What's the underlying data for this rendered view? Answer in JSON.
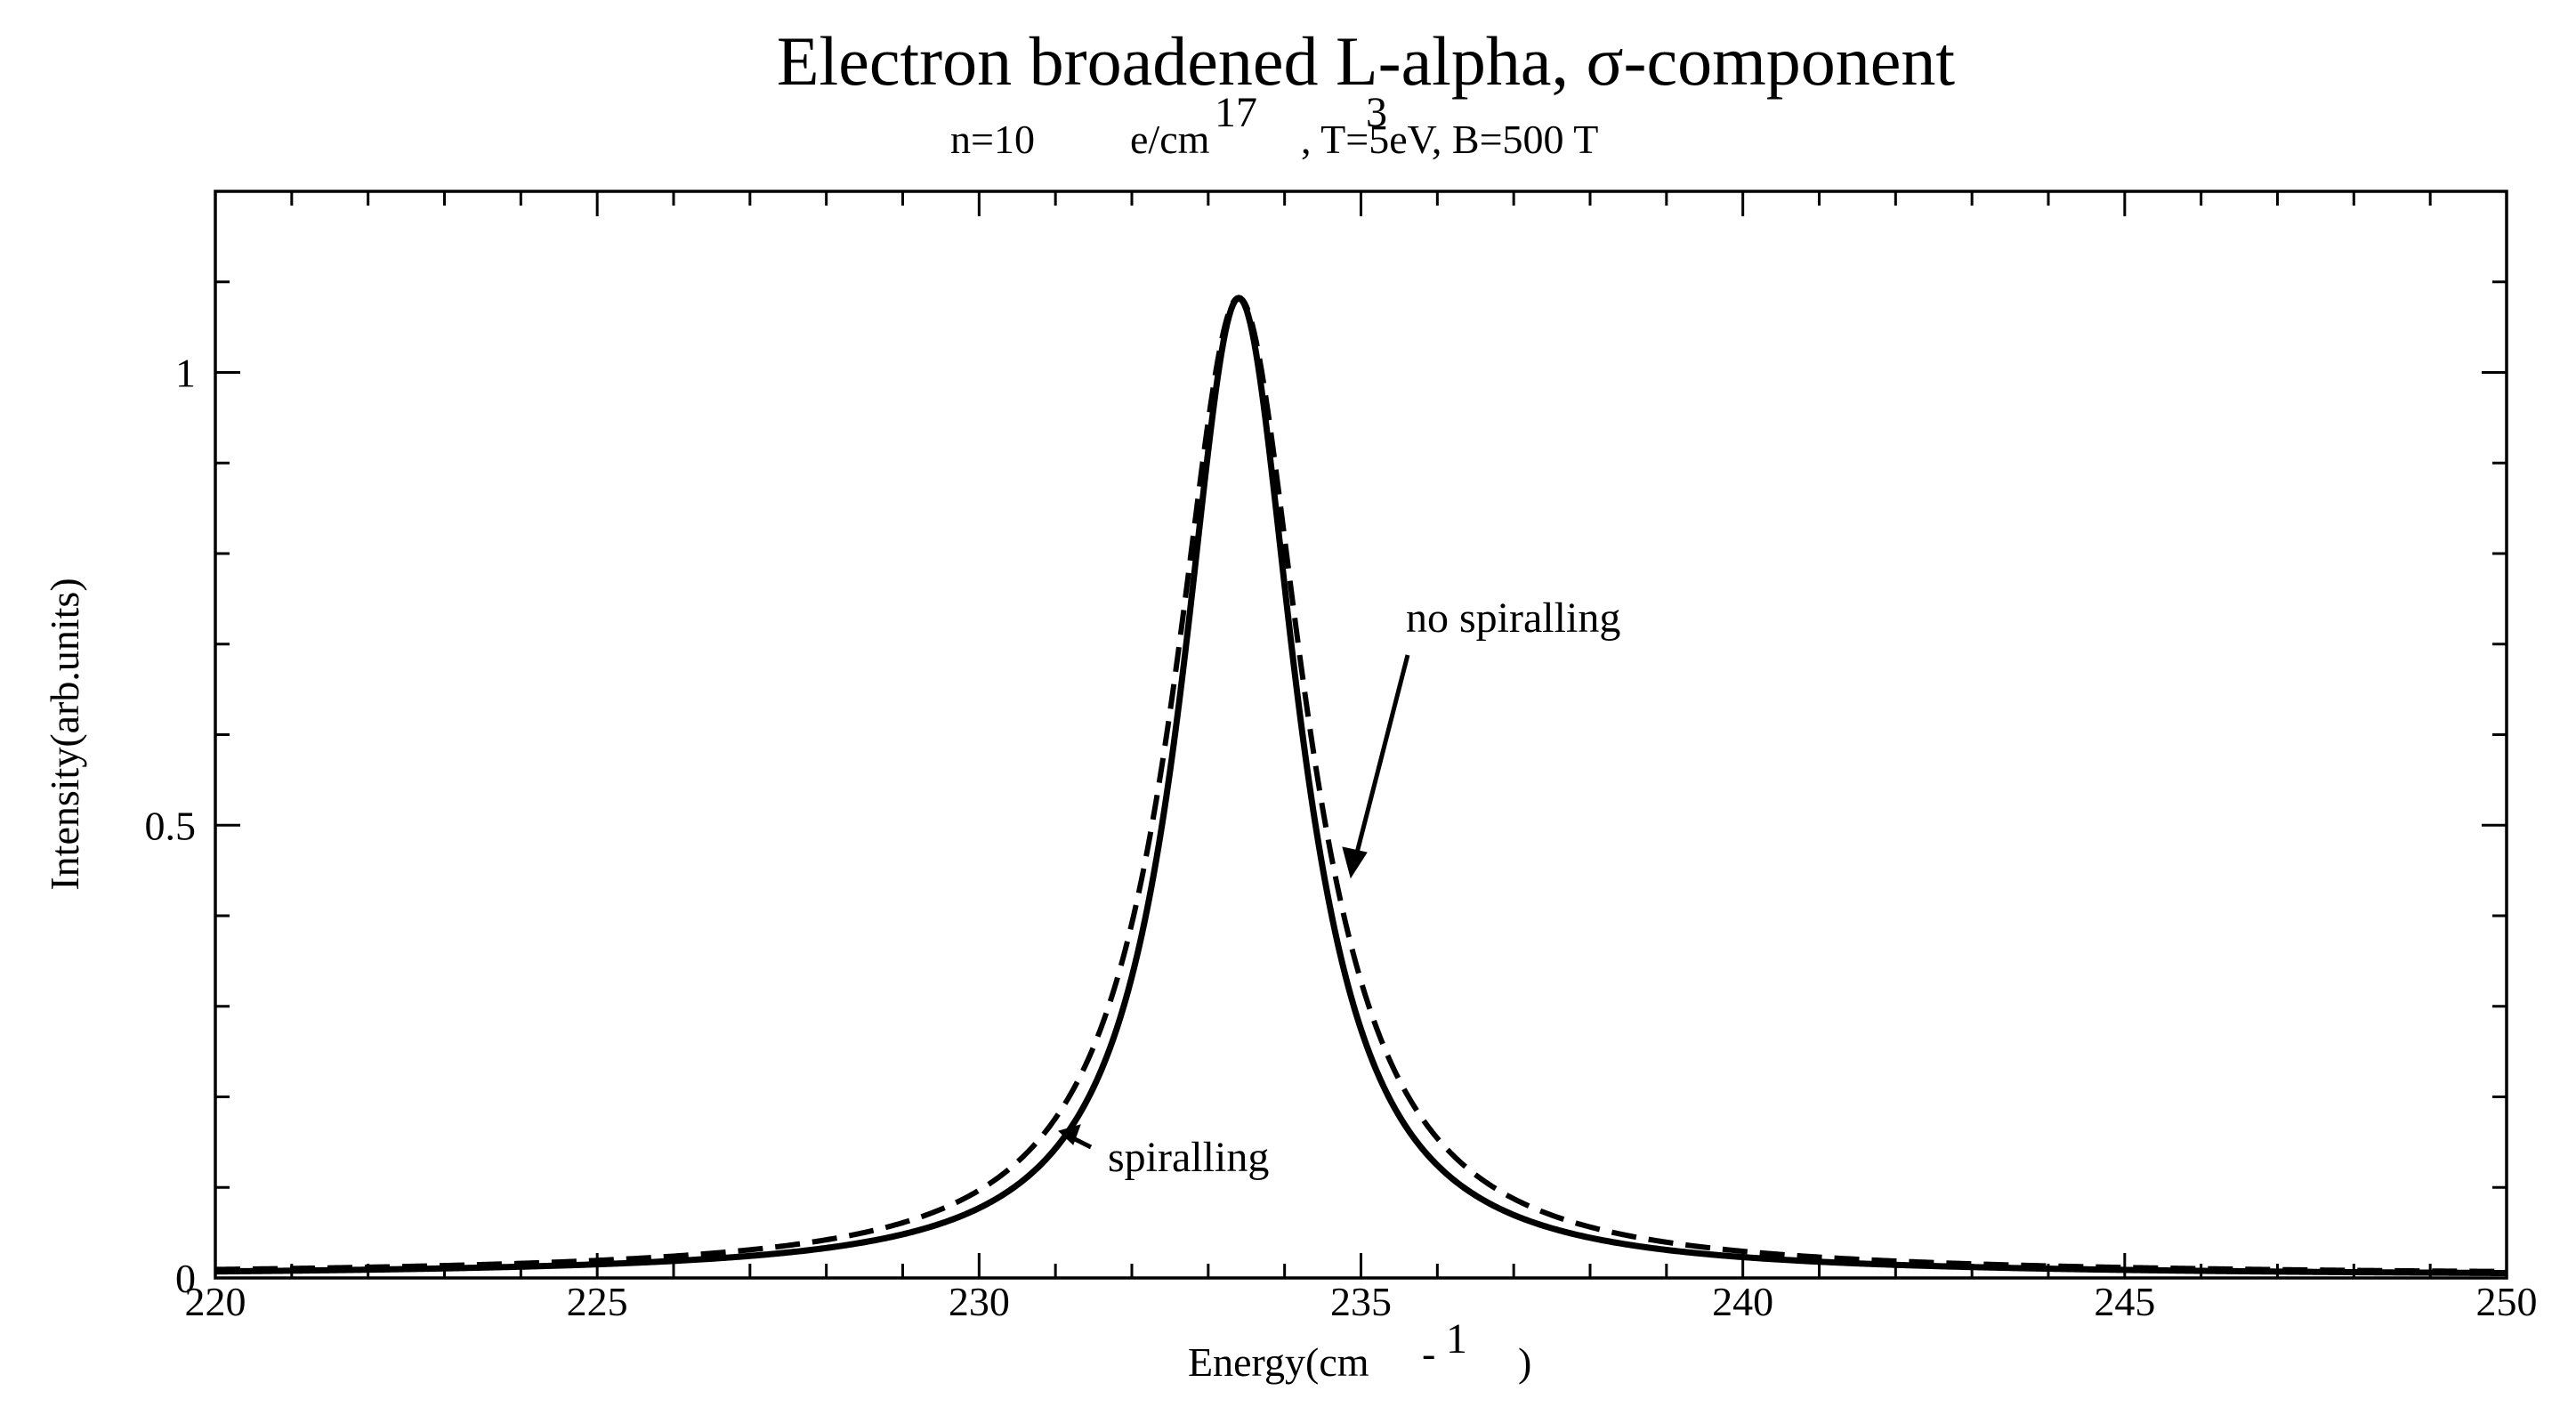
{
  "chart_data": {
    "type": "line",
    "title": "Electron broadened L-alpha, σ-component",
    "subtitle": {
      "part1": "n=10",
      "part2": "e/cm",
      "part3": ", T=5eV, B=500 T",
      "exponent_density": "17",
      "exponent_volume": "3"
    },
    "xlabel": {
      "text": "Energy(cm",
      "minus": "-",
      "exponent": "1",
      "close": ")"
    },
    "ylabel": "Intensity(arb.units)",
    "xlim": [
      220,
      250
    ],
    "ylim": [
      0,
      1.2
    ],
    "x_tick_labels": [
      "220",
      "225",
      "230",
      "235",
      "240",
      "245",
      "250"
    ],
    "y_tick_labels": [
      "0",
      "0.5",
      "1"
    ],
    "grid": false,
    "annotations": {
      "no_spiralling": "no spiralling",
      "spiralling": "spiralling"
    },
    "series": [
      {
        "name": "spiralling",
        "style": "solid",
        "center": 233.4,
        "peak": 1.08,
        "half_width": 0.93,
        "x": [
          220,
          222,
          224,
          226,
          228,
          229,
          230,
          231,
          232,
          232.5,
          233,
          233.4,
          234,
          234.5,
          235,
          236,
          237,
          238,
          240,
          242,
          244,
          246,
          248,
          250
        ],
        "y": [
          0.005,
          0.008,
          0.011,
          0.018,
          0.038,
          0.062,
          0.105,
          0.2,
          0.37,
          0.55,
          0.93,
          1.08,
          0.83,
          0.55,
          0.31,
          0.12,
          0.064,
          0.04,
          0.018,
          0.01,
          0.007,
          0.005,
          0.004,
          0.003
        ]
      },
      {
        "name": "no spiralling",
        "style": "dashed",
        "center": 233.4,
        "peak": 1.08,
        "half_width": 1.05,
        "x": [
          220,
          222,
          224,
          226,
          228,
          229,
          230,
          231,
          232,
          232.5,
          233,
          233.4,
          234,
          234.5,
          235,
          236,
          237,
          238,
          240,
          242,
          244,
          246,
          248,
          250
        ],
        "y": [
          0.007,
          0.01,
          0.014,
          0.022,
          0.045,
          0.072,
          0.12,
          0.22,
          0.4,
          0.59,
          0.95,
          1.08,
          0.86,
          0.6,
          0.36,
          0.15,
          0.08,
          0.05,
          0.022,
          0.013,
          0.009,
          0.006,
          0.005,
          0.004
        ]
      }
    ]
  }
}
